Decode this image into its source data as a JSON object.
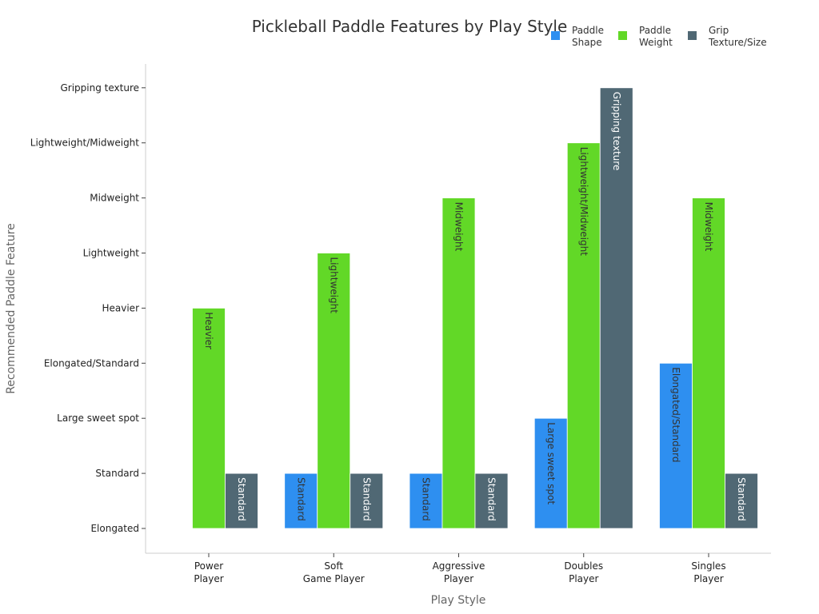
{
  "chart_data": {
    "type": "bar",
    "title": "Pickleball Paddle Features by Play Style",
    "xlabel": "Play Style",
    "ylabel": "Recommended Paddle Feature",
    "categories": [
      [
        "Power",
        "Player"
      ],
      [
        "Soft",
        "Game Player"
      ],
      [
        "Aggressive",
        "Player"
      ],
      [
        "Doubles",
        "Player"
      ],
      [
        "Singles",
        "Player"
      ]
    ],
    "y_levels": [
      "Elongated",
      "Standard",
      "Large sweet spot",
      "Elongated/Standard",
      "Heavier",
      "Lightweight",
      "Midweight",
      "Lightweight/Midweight",
      "Gripping texture"
    ],
    "series": [
      {
        "name": [
          "Paddle",
          "Shape"
        ],
        "color": "#2e8ff0",
        "label_color": "#333333",
        "values": [
          "Elongated",
          "Standard",
          "Standard",
          "Large sweet spot",
          "Elongated/Standard"
        ]
      },
      {
        "name": [
          "Paddle",
          "Weight"
        ],
        "color": "#62d827",
        "label_color": "#333333",
        "values": [
          "Heavier",
          "Lightweight",
          "Midweight",
          "Lightweight/Midweight",
          "Midweight"
        ]
      },
      {
        "name": [
          "Grip",
          "Texture/Size"
        ],
        "color": "#506874",
        "label_color": "#ffffff",
        "values": [
          "Standard",
          "Standard",
          "Standard",
          "Gripping texture",
          "Standard"
        ]
      }
    ],
    "legend_position": "top-right",
    "grid": false
  }
}
